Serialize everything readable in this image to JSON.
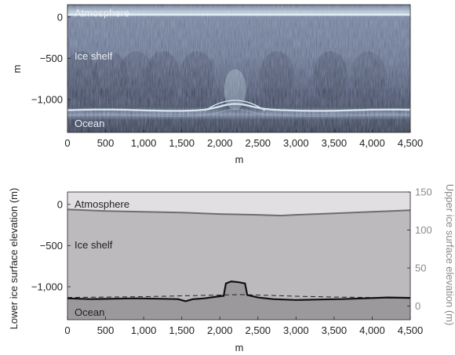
{
  "chart_data": [
    {
      "type": "heatmap",
      "xlabel": "m",
      "ylabel": "m",
      "xlim": [
        0,
        4500
      ],
      "ylim": [
        -1400,
        150
      ],
      "x_ticks": [
        "0",
        "500",
        "1,000",
        "1,500",
        "2,000",
        "2,500",
        "3,000",
        "3,500",
        "4,000",
        "4,500"
      ],
      "x_tick_values": [
        0,
        500,
        1000,
        1500,
        2000,
        2500,
        3000,
        3500,
        4000,
        4500
      ],
      "y_ticks": [
        "0",
        "−500",
        "−1,000"
      ],
      "y_tick_values": [
        0,
        -500,
        -1000
      ],
      "annotations": [
        "Atmosphere",
        "Ice shelf",
        "Ocean"
      ],
      "surface_reflector_elevation": 30,
      "base_reflector_elevation": -1130,
      "colormap": [
        "#3a4256",
        "#7d8aa6",
        "#cfe0ec"
      ]
    },
    {
      "type": "line",
      "xlabel": "m",
      "ylabel": "Lower ice surface elevation (m)",
      "y2label": "Upper ice surface elevation (m)",
      "xlim": [
        0,
        4500
      ],
      "ylim": [
        -1400,
        150
      ],
      "y2lim": [
        -18,
        150
      ],
      "x_ticks": [
        "0",
        "500",
        "1,000",
        "1,500",
        "2,000",
        "2,500",
        "3,000",
        "3,500",
        "4,000",
        "4,500"
      ],
      "x_tick_values": [
        0,
        500,
        1000,
        1500,
        2000,
        2500,
        3000,
        3500,
        4000,
        4500
      ],
      "y_ticks": [
        "0",
        "−500",
        "−1,000"
      ],
      "y_tick_values": [
        0,
        -500,
        -1000
      ],
      "y2_ticks": [
        "0",
        "50",
        "100",
        "150"
      ],
      "y2_tick_values": [
        0,
        50,
        100,
        150
      ],
      "annotations": [
        "Atmosphere",
        "Ice shelf",
        "Ocean"
      ],
      "colors": {
        "atmosphere": "#e2dfe3",
        "ice_shelf": "#bcbabd",
        "ocean": "#9b999c",
        "upper_line": "#6e6e6e",
        "lower_line": "#111111"
      },
      "series": [
        {
          "axis": "y2",
          "x": [
            0,
            500,
            1000,
            1500,
            2000,
            2500,
            2800,
            3000,
            3500,
            4000,
            4500
          ],
          "y": [
            127,
            125,
            124,
            123,
            121,
            120,
            119,
            120,
            122,
            124,
            126
          ]
        },
        {
          "axis": "y",
          "x": [
            0,
            300,
            600,
            900,
            1200,
            1450,
            1550,
            1650,
            1800,
            1950,
            2050,
            2080,
            2150,
            2250,
            2330,
            2360,
            2500,
            2700,
            3000,
            3300,
            3600,
            3900,
            4200,
            4500
          ],
          "y": [
            -1140,
            -1150,
            -1145,
            -1140,
            -1145,
            -1150,
            -1175,
            -1150,
            -1140,
            -1120,
            -1110,
            -960,
            -935,
            -945,
            -960,
            -1100,
            -1130,
            -1150,
            -1160,
            -1155,
            -1150,
            -1140,
            -1130,
            -1135
          ]
        },
        {
          "axis": "y",
          "x": [
            0,
            500,
            1000,
            1500,
            2000,
            2250,
            2500,
            3000,
            3500,
            4000,
            4500
          ],
          "y": [
            -1130,
            -1125,
            -1120,
            -1110,
            -1100,
            -1095,
            -1100,
            -1115,
            -1125,
            -1130,
            -1140
          ]
        }
      ]
    }
  ]
}
